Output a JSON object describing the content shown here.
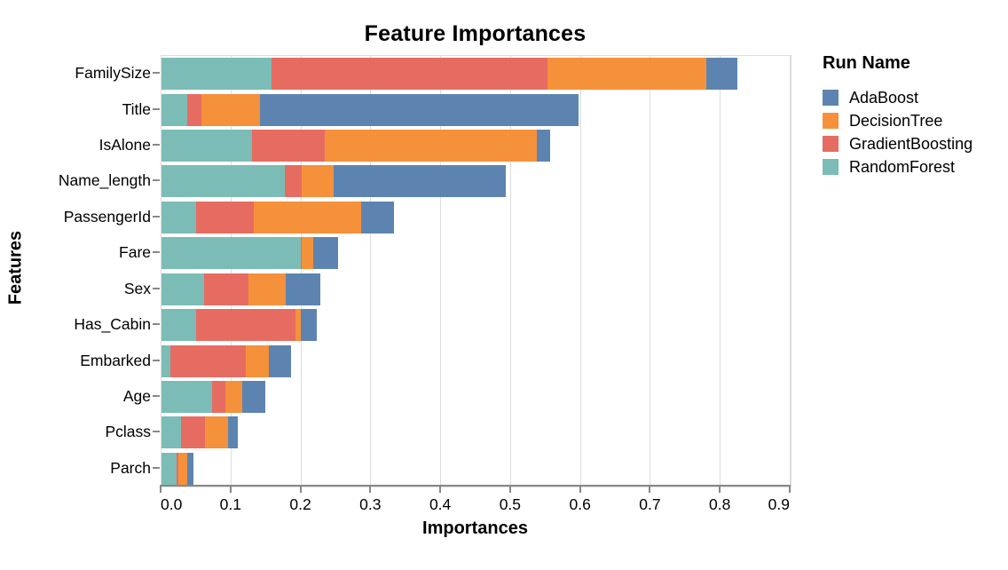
{
  "chart_data": {
    "type": "bar",
    "orientation": "horizontal",
    "stacked": true,
    "title": "Feature Importances",
    "xlabel": "Importances",
    "ylabel": "Features",
    "xlim": [
      0,
      0.9
    ],
    "x_tick_values": [
      0,
      0.1,
      0.2,
      0.3,
      0.4,
      0.5,
      0.6,
      0.7,
      0.8,
      0.9
    ],
    "x_tick_labels": [
      "0.0",
      "0.1",
      "0.2",
      "0.3",
      "0.4",
      "0.5",
      "0.6",
      "0.7",
      "0.8",
      "0.9"
    ],
    "grid": true,
    "categories": [
      "FamilySize",
      "Title",
      "IsAlone",
      "Name_length",
      "PassengerId",
      "Fare",
      "Sex",
      "Has_Cabin",
      "Embarked",
      "Age",
      "Pclass",
      "Parch"
    ],
    "series": [
      {
        "name": "AdaBoost",
        "color": "#5d84b0",
        "values": [
          0.044,
          0.455,
          0.019,
          0.246,
          0.046,
          0.036,
          0.049,
          0.023,
          0.032,
          0.034,
          0.014,
          0.009
        ]
      },
      {
        "name": "DecisionTree",
        "color": "#f5913a",
        "values": [
          0.228,
          0.084,
          0.304,
          0.045,
          0.154,
          0.017,
          0.053,
          0.007,
          0.032,
          0.023,
          0.033,
          0.013
        ]
      },
      {
        "name": "GradientBoosting",
        "color": "#e66c62",
        "values": [
          0.395,
          0.02,
          0.103,
          0.024,
          0.083,
          0.001,
          0.064,
          0.143,
          0.108,
          0.02,
          0.034,
          0.003
        ]
      },
      {
        "name": "RandomForest",
        "color": "#7cbcb6",
        "values": [
          0.157,
          0.037,
          0.13,
          0.177,
          0.049,
          0.199,
          0.061,
          0.049,
          0.013,
          0.072,
          0.028,
          0.021
        ]
      }
    ],
    "stack_order_left_to_right": [
      "RandomForest",
      "GradientBoosting",
      "DecisionTree",
      "AdaBoost"
    ],
    "legend": {
      "title": "Run Name",
      "position": "right"
    }
  }
}
